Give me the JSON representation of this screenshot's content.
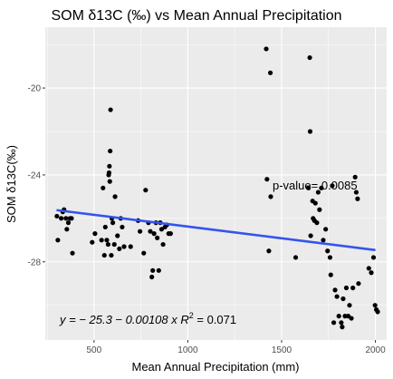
{
  "chart_data": {
    "type": "scatter",
    "title": "SOM δ13C (‰) vs Mean Annual Precipitation",
    "xlabel": "Mean Annual Precipitation (mm)",
    "ylabel": "SOM δ13C(‰)",
    "xlim": [
      240,
      2060
    ],
    "ylim": [
      -31.6,
      -17.2
    ],
    "y_reversed": true,
    "xticks": [
      500,
      1000,
      1500,
      2000
    ],
    "xtick_labels": [
      "500",
      "1000",
      "1500",
      "2000"
    ],
    "yticks": [
      -20,
      -24,
      -28
    ],
    "ytick_labels": [
      "-20",
      "-24",
      "-28"
    ],
    "grid": true,
    "point_color": "#000000",
    "fit_line": {
      "x": [
        300,
        2000
      ],
      "y": [
        -25.62,
        -27.46
      ],
      "color": "#3355ee"
    },
    "annotations": {
      "pvalue": "p-value= 0.0085",
      "equation_prefix": "y = − 25.3 − 0.00108 x   ",
      "equation_r2_base": "R",
      "equation_r2_sup": "2",
      "equation_r2_value": " = 0.071"
    },
    "points": [
      {
        "x": 302,
        "y": -25.9
      },
      {
        "x": 307,
        "y": -27.0
      },
      {
        "x": 325,
        "y": -26.0
      },
      {
        "x": 333,
        "y": -25.7
      },
      {
        "x": 340,
        "y": -25.6
      },
      {
        "x": 350,
        "y": -26.0
      },
      {
        "x": 355,
        "y": -26.5
      },
      {
        "x": 363,
        "y": -26.2
      },
      {
        "x": 372,
        "y": -26.0
      },
      {
        "x": 380,
        "y": -26.0
      },
      {
        "x": 385,
        "y": -27.6
      },
      {
        "x": 490,
        "y": -27.1
      },
      {
        "x": 505,
        "y": -26.7
      },
      {
        "x": 540,
        "y": -27.0
      },
      {
        "x": 548,
        "y": -24.6
      },
      {
        "x": 555,
        "y": -27.7
      },
      {
        "x": 560,
        "y": -26.4
      },
      {
        "x": 568,
        "y": -27.0
      },
      {
        "x": 575,
        "y": -27.2
      },
      {
        "x": 578,
        "y": -24.0
      },
      {
        "x": 580,
        "y": -23.9
      },
      {
        "x": 582,
        "y": -23.6
      },
      {
        "x": 584,
        "y": -24.3
      },
      {
        "x": 586,
        "y": -22.9
      },
      {
        "x": 588,
        "y": -21.0
      },
      {
        "x": 592,
        "y": -27.7
      },
      {
        "x": 595,
        "y": -26.0
      },
      {
        "x": 600,
        "y": -26.2
      },
      {
        "x": 608,
        "y": -27.2
      },
      {
        "x": 612,
        "y": -25.0
      },
      {
        "x": 625,
        "y": -26.8
      },
      {
        "x": 635,
        "y": -27.4
      },
      {
        "x": 642,
        "y": -26.0
      },
      {
        "x": 650,
        "y": -26.4
      },
      {
        "x": 660,
        "y": -27.3
      },
      {
        "x": 695,
        "y": -27.3
      },
      {
        "x": 735,
        "y": -26.1
      },
      {
        "x": 745,
        "y": -26.6
      },
      {
        "x": 765,
        "y": -27.6
      },
      {
        "x": 775,
        "y": -24.7
      },
      {
        "x": 790,
        "y": -26.2
      },
      {
        "x": 800,
        "y": -26.6
      },
      {
        "x": 808,
        "y": -28.7
      },
      {
        "x": 813,
        "y": -28.4
      },
      {
        "x": 820,
        "y": -26.7
      },
      {
        "x": 830,
        "y": -26.2
      },
      {
        "x": 837,
        "y": -26.9
      },
      {
        "x": 845,
        "y": -28.4
      },
      {
        "x": 853,
        "y": -26.2
      },
      {
        "x": 860,
        "y": -26.5
      },
      {
        "x": 868,
        "y": -27.2
      },
      {
        "x": 878,
        "y": -26.4
      },
      {
        "x": 888,
        "y": -26.3
      },
      {
        "x": 898,
        "y": -26.7
      },
      {
        "x": 908,
        "y": -26.7
      },
      {
        "x": 1418,
        "y": -18.2
      },
      {
        "x": 1422,
        "y": -24.2
      },
      {
        "x": 1432,
        "y": -27.5
      },
      {
        "x": 1440,
        "y": -19.3
      },
      {
        "x": 1442,
        "y": -25.0
      },
      {
        "x": 1575,
        "y": -27.8
      },
      {
        "x": 1643,
        "y": -24.6
      },
      {
        "x": 1650,
        "y": -18.6
      },
      {
        "x": 1652,
        "y": -22.0
      },
      {
        "x": 1655,
        "y": -26.8
      },
      {
        "x": 1665,
        "y": -25.2
      },
      {
        "x": 1668,
        "y": -26.0
      },
      {
        "x": 1675,
        "y": -26.1
      },
      {
        "x": 1680,
        "y": -25.3
      },
      {
        "x": 1688,
        "y": -26.2
      },
      {
        "x": 1695,
        "y": -24.8
      },
      {
        "x": 1702,
        "y": -25.6
      },
      {
        "x": 1712,
        "y": -24.6
      },
      {
        "x": 1722,
        "y": -27.0
      },
      {
        "x": 1735,
        "y": -26.5
      },
      {
        "x": 1745,
        "y": -27.5
      },
      {
        "x": 1758,
        "y": -27.8
      },
      {
        "x": 1762,
        "y": -28.6
      },
      {
        "x": 1770,
        "y": -24.5
      },
      {
        "x": 1778,
        "y": -30.8
      },
      {
        "x": 1785,
        "y": -29.3
      },
      {
        "x": 1795,
        "y": -29.6
      },
      {
        "x": 1805,
        "y": -30.5
      },
      {
        "x": 1818,
        "y": -30.8
      },
      {
        "x": 1823,
        "y": -31.0
      },
      {
        "x": 1828,
        "y": -29.7
      },
      {
        "x": 1838,
        "y": -30.5
      },
      {
        "x": 1845,
        "y": -29.2
      },
      {
        "x": 1855,
        "y": -30.5
      },
      {
        "x": 1862,
        "y": -30.0
      },
      {
        "x": 1872,
        "y": -30.6
      },
      {
        "x": 1880,
        "y": -29.2
      },
      {
        "x": 1892,
        "y": -24.1
      },
      {
        "x": 1898,
        "y": -24.8
      },
      {
        "x": 1905,
        "y": -25.1
      },
      {
        "x": 1910,
        "y": -29.0
      },
      {
        "x": 1965,
        "y": -28.3
      },
      {
        "x": 1978,
        "y": -28.5
      },
      {
        "x": 1990,
        "y": -27.8
      },
      {
        "x": 1998,
        "y": -30.0
      },
      {
        "x": 2005,
        "y": -30.2
      },
      {
        "x": 2012,
        "y": -30.3
      }
    ]
  }
}
